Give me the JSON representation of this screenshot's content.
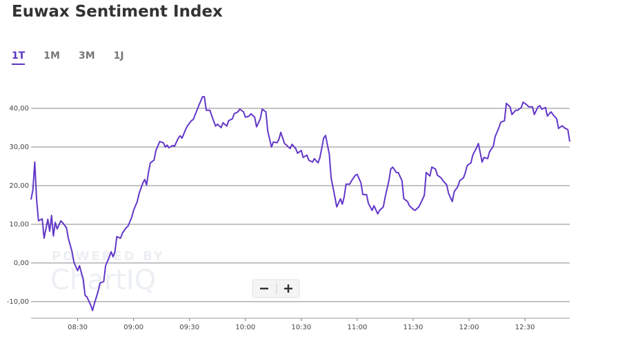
{
  "header": {
    "title": "Euwax Sentiment Index"
  },
  "tabs": [
    "1T",
    "1M",
    "3M",
    "1J"
  ],
  "active_tab": 0,
  "watermark": [
    "POWERED BY",
    "ChartIQ"
  ],
  "chart_data": {
    "type": "line",
    "color": "#6236c9",
    "grid": true,
    "x": [
      "08:05",
      "08:06",
      "08:07",
      "08:08",
      "08:09",
      "08:11",
      "08:12",
      "08:14",
      "08:15",
      "08:16",
      "08:17",
      "08:18",
      "08:19",
      "08:21",
      "08:22",
      "08:24",
      "08:25",
      "08:27",
      "08:28",
      "08:30",
      "08:31",
      "08:33",
      "08:34",
      "08:35",
      "08:37",
      "08:38",
      "08:39",
      "08:41",
      "08:42",
      "08:44",
      "08:45",
      "08:47",
      "08:48",
      "08:49",
      "08:50",
      "08:51",
      "08:53",
      "08:54",
      "08:56",
      "08:57",
      "08:59",
      "09:00",
      "09:02",
      "09:03",
      "09:05",
      "09:06",
      "09:07",
      "09:08",
      "09:09",
      "09:11",
      "09:12",
      "09:13",
      "09:14",
      "09:16",
      "09:17",
      "09:18",
      "09:19",
      "09:21",
      "09:22",
      "09:24",
      "09:25",
      "09:26",
      "09:28",
      "09:29",
      "09:31",
      "09:32",
      "09:34",
      "09:35",
      "09:37",
      "09:38",
      "09:39",
      "09:41",
      "09:42",
      "09:44",
      "09:45",
      "09:47",
      "09:48",
      "09:50",
      "09:51",
      "09:53",
      "09:54",
      "09:56",
      "09:57",
      "09:59",
      "10:00",
      "10:02",
      "10:03",
      "10:05",
      "10:06",
      "10:08",
      "10:09",
      "10:11",
      "10:12",
      "10:14",
      "10:15",
      "10:17",
      "10:18",
      "10:19",
      "10:21",
      "10:22",
      "10:24",
      "10:25",
      "10:27",
      "10:28",
      "10:30",
      "10:31",
      "10:33",
      "10:34",
      "10:36",
      "10:37",
      "10:39",
      "10:40",
      "10:42",
      "10:43",
      "10:45",
      "10:46",
      "10:48",
      "10:49",
      "10:51",
      "10:52",
      "10:53",
      "10:54",
      "10:56",
      "10:57",
      "10:59",
      "11:00",
      "11:02",
      "11:03",
      "11:05",
      "11:06",
      "11:08",
      "11:09",
      "11:11",
      "11:12",
      "11:14",
      "11:15",
      "11:17",
      "11:18",
      "11:19",
      "11:21",
      "11:22",
      "11:24",
      "11:25",
      "11:27",
      "11:28",
      "11:30",
      "11:31",
      "11:33",
      "11:34",
      "11:36",
      "11:37",
      "11:39",
      "11:40",
      "11:42",
      "11:43",
      "11:45",
      "11:46",
      "11:48",
      "11:49",
      "11:51",
      "11:52",
      "11:54",
      "11:55",
      "11:57",
      "11:58",
      "11:59",
      "12:01",
      "12:02",
      "12:04",
      "12:05",
      "12:07",
      "12:08",
      "12:10",
      "12:11",
      "12:13",
      "12:14",
      "12:16",
      "12:17",
      "12:19",
      "12:20",
      "12:22",
      "12:23",
      "12:25",
      "12:26",
      "12:28",
      "12:29",
      "12:31",
      "12:32",
      "12:34",
      "12:35",
      "12:37",
      "12:38",
      "12:39",
      "12:41",
      "12:42",
      "12:44",
      "12:45",
      "12:47",
      "12:48",
      "12:50",
      "12:51",
      "12:53",
      "12:54"
    ],
    "values": [
      16.4,
      18.9,
      26.1,
      16.3,
      10.9,
      11.4,
      6.4,
      11.3,
      8.2,
      12.3,
      7.0,
      10.5,
      8.8,
      10.9,
      10.4,
      9.1,
      6.4,
      2.9,
      0.2,
      -2.0,
      -0.7,
      -4.3,
      -8.4,
      -8.8,
      -10.9,
      -12.3,
      -10.5,
      -7.3,
      -5.2,
      -4.8,
      -0.7,
      1.6,
      2.9,
      1.6,
      2.9,
      6.8,
      6.4,
      7.7,
      9.1,
      9.5,
      11.8,
      13.6,
      15.9,
      18.0,
      20.7,
      21.6,
      20.2,
      23.4,
      25.9,
      26.6,
      29.1,
      30.2,
      31.4,
      31.1,
      30.0,
      30.5,
      29.8,
      30.4,
      30.2,
      32.3,
      32.9,
      32.3,
      34.6,
      35.5,
      36.8,
      37.1,
      39.5,
      40.7,
      43.0,
      43.0,
      39.5,
      39.5,
      38.0,
      35.4,
      35.9,
      35.0,
      36.3,
      35.4,
      36.8,
      37.3,
      38.6,
      39.1,
      39.8,
      39.1,
      37.7,
      38.0,
      38.6,
      37.7,
      35.2,
      37.3,
      39.8,
      39.1,
      34.1,
      30.0,
      31.3,
      31.1,
      32.0,
      33.8,
      30.9,
      30.5,
      29.6,
      30.7,
      29.6,
      28.4,
      29.1,
      27.3,
      27.9,
      26.6,
      26.1,
      27.0,
      25.9,
      27.3,
      32.3,
      33.0,
      28.2,
      22.0,
      17.1,
      14.5,
      16.6,
      15.2,
      17.1,
      20.4,
      20.4,
      21.3,
      22.7,
      22.9,
      20.7,
      17.7,
      17.7,
      15.4,
      13.6,
      14.8,
      12.7,
      13.6,
      14.5,
      17.1,
      21.3,
      24.3,
      24.8,
      23.4,
      23.4,
      21.3,
      16.6,
      15.9,
      14.8,
      13.9,
      13.6,
      14.5,
      15.4,
      17.5,
      23.4,
      22.5,
      24.8,
      24.3,
      22.7,
      22.0,
      21.3,
      20.2,
      18.0,
      15.9,
      18.4,
      19.8,
      21.3,
      22.0,
      23.4,
      25.2,
      25.9,
      27.9,
      29.8,
      30.9,
      26.1,
      27.3,
      27.0,
      28.8,
      30.2,
      32.7,
      35.0,
      36.4,
      36.8,
      41.3,
      40.4,
      38.4,
      39.5,
      39.5,
      40.2,
      41.6,
      40.9,
      40.4,
      40.4,
      38.4,
      40.4,
      40.7,
      39.8,
      40.2,
      38.0,
      39.1,
      38.4,
      37.3,
      34.8,
      35.5,
      35.0,
      34.5,
      31.4
    ],
    "xlim": [
      "08:05",
      "12:54"
    ],
    "xticks": [
      "08:30",
      "09:00",
      "09:30",
      "10:00",
      "10:30",
      "11:00",
      "11:30",
      "12:00",
      "12:30"
    ],
    "ylim": [
      -14.3,
      46.6
    ],
    "yticks": [
      {
        "value": -10,
        "label": "-10,00"
      },
      {
        "value": 0,
        "label": "0,00"
      },
      {
        "value": 10,
        "label": "10,00"
      },
      {
        "value": 20,
        "label": "20,00"
      },
      {
        "value": 30,
        "label": "30,00"
      },
      {
        "value": 40,
        "label": "40,00"
      }
    ]
  }
}
